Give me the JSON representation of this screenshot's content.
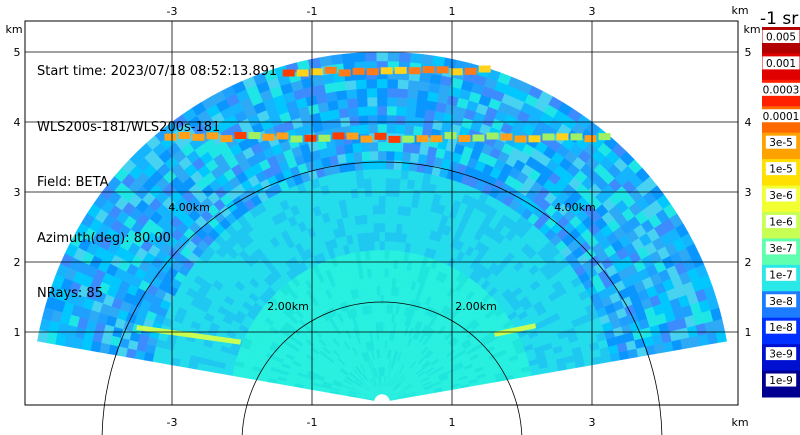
{
  "info": {
    "start_time": "Start time: 2023/07/18 08:52:13.891",
    "instrument": "WLS200s-181/WLS200s-181",
    "field": "Field: BETA",
    "azimuth": "Azimuth(deg): 80.00",
    "nrays": "NRays: 85"
  },
  "colorbar": {
    "title": "-1 sr",
    "labels": [
      "0.005",
      "0.001",
      "0.0003",
      "0.0001",
      "3e-5",
      "1e-5",
      "3e-6",
      "1e-6",
      "3e-7",
      "1e-7",
      "3e-8",
      "1e-8",
      "3e-9",
      "1e-9"
    ],
    "colors": [
      "#b30000",
      "#e00000",
      "#ff2000",
      "#ff6a00",
      "#ffa200",
      "#ffe000",
      "#f2ff30",
      "#c8ff55",
      "#60ffb0",
      "#28e8e8",
      "#1c7cff",
      "#0030ff",
      "#0010d0",
      "#000090"
    ]
  },
  "chart_data": {
    "type": "heatmap",
    "x_unit": "km",
    "y_unit": "km",
    "xlim": [
      -4,
      4
    ],
    "ylim": [
      0,
      5.7
    ],
    "x_ticks": [
      -3,
      -1,
      1,
      3
    ],
    "y_ticks": [
      1,
      2,
      3,
      4,
      5
    ],
    "range_rings_km": [
      2,
      4
    ],
    "ring_labels": [
      "2.00km",
      "4.00km"
    ],
    "max_range_km": 5.0,
    "grid": true,
    "layers": [
      {
        "height_km": 3.8,
        "color": "#ff9f1a"
      },
      {
        "height_km": 4.75,
        "color": "#ff7a1a"
      }
    ]
  }
}
